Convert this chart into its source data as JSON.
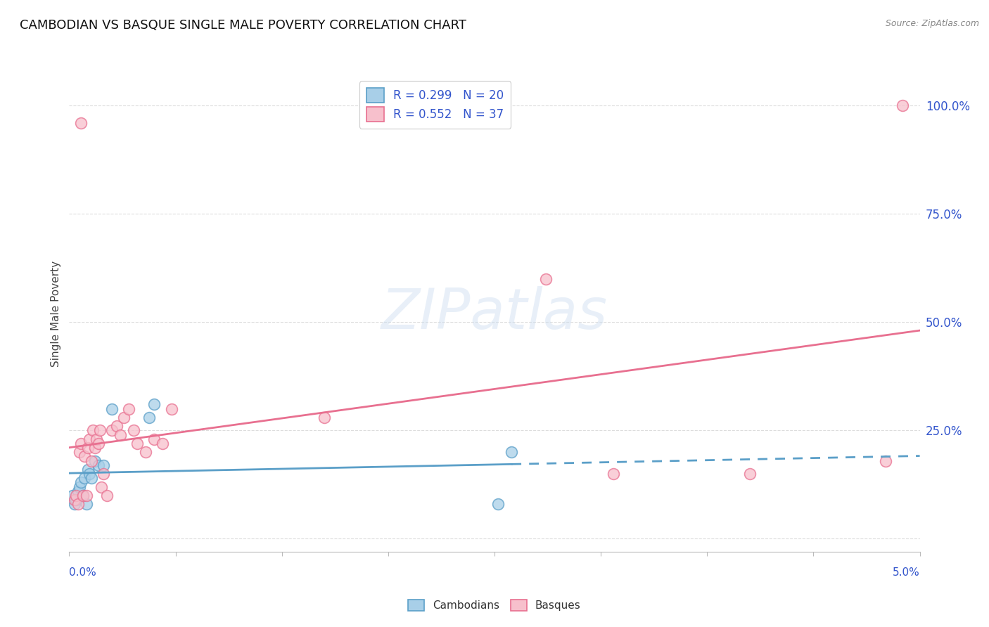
{
  "title": "CAMBODIAN VS BASQUE SINGLE MALE POVERTY CORRELATION CHART",
  "source": "Source: ZipAtlas.com",
  "ylabel": "Single Male Poverty",
  "xlim": [
    0.0,
    5.0
  ],
  "ylim": [
    -3.0,
    107.0
  ],
  "ytick_vals": [
    0,
    25,
    50,
    75,
    100
  ],
  "ytick_labels": [
    "",
    "25.0%",
    "50.0%",
    "75.0%",
    "100.0%"
  ],
  "legend_cam": "R = 0.299   N = 20",
  "legend_bas": "R = 0.552   N = 37",
  "color_cam_fill": "#a8cfe8",
  "color_cam_edge": "#5b9fc8",
  "color_bas_fill": "#f7c0cc",
  "color_bas_edge": "#e87090",
  "color_trend_cam": "#5b9fc8",
  "color_trend_bas": "#e87090",
  "color_label": "#3355cc",
  "color_grid": "#dddddd",
  "color_bg": "#ffffff",
  "watermark_text": "ZIPatlas",
  "cam_x": [
    0.02,
    0.03,
    0.04,
    0.05,
    0.06,
    0.07,
    0.08,
    0.09,
    0.1,
    0.11,
    0.12,
    0.13,
    0.15,
    0.17,
    0.2,
    0.25,
    0.47,
    0.5,
    2.52,
    2.6
  ],
  "cam_y": [
    10,
    8,
    9,
    11,
    12,
    13,
    10,
    14,
    8,
    16,
    15,
    14,
    18,
    17,
    17,
    30,
    28,
    31,
    8,
    20
  ],
  "bas_x": [
    0.03,
    0.04,
    0.05,
    0.06,
    0.07,
    0.08,
    0.09,
    0.1,
    0.11,
    0.12,
    0.13,
    0.14,
    0.15,
    0.16,
    0.17,
    0.18,
    0.19,
    0.2,
    0.22,
    0.25,
    0.28,
    0.3,
    0.32,
    0.35,
    0.38,
    0.4,
    0.45,
    0.5,
    0.55,
    0.6,
    0.07,
    1.5,
    2.8,
    3.2,
    4.0,
    4.8,
    4.9
  ],
  "bas_y": [
    9,
    10,
    8,
    20,
    22,
    10,
    19,
    10,
    21,
    23,
    18,
    25,
    21,
    23,
    22,
    25,
    12,
    15,
    10,
    25,
    26,
    24,
    28,
    30,
    25,
    22,
    20,
    23,
    22,
    30,
    96,
    28,
    60,
    15,
    15,
    18,
    100
  ],
  "marker_size": 130,
  "trend_linewidth": 2.0,
  "bottom_legend_labels": [
    "Cambodians",
    "Basques"
  ]
}
